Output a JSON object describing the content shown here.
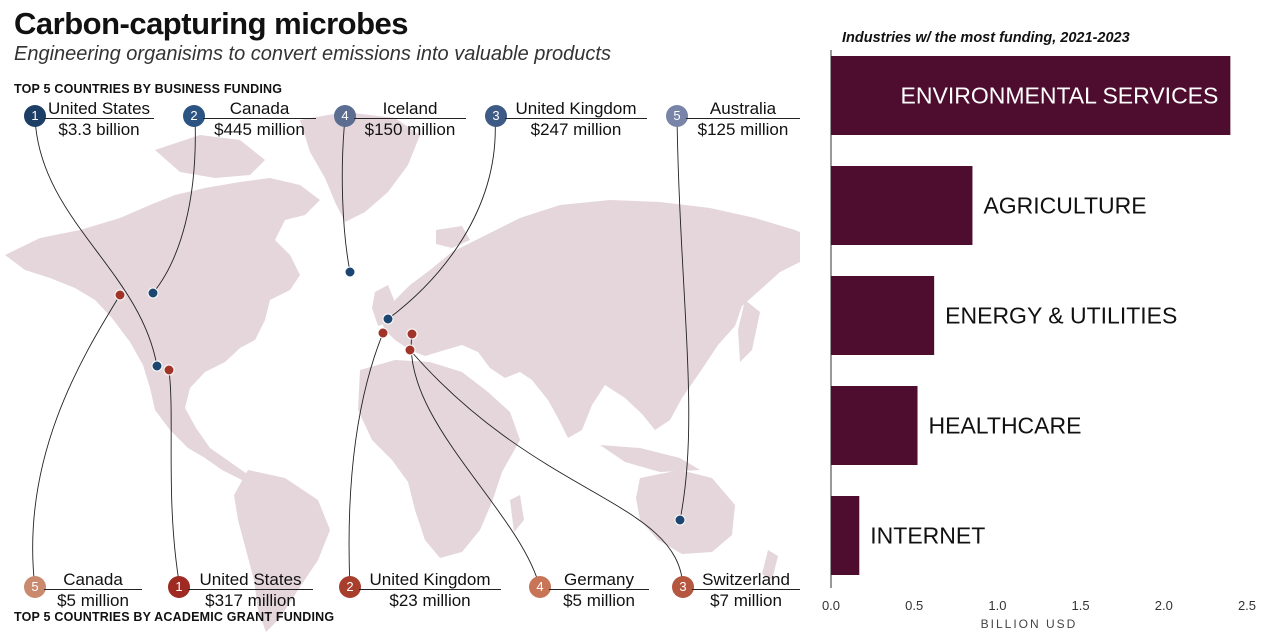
{
  "header": {
    "title": "Carbon-capturing microbes",
    "subtitle": "Engineering organisims to convert emissions into valuable products"
  },
  "map": {
    "business_label": "TOP 5 COUNTRIES BY BUSINESS FUNDING",
    "academic_label": "TOP 5 COUNTRIES BY ACADEMIC GRANT FUNDING",
    "business": [
      {
        "rank": "1",
        "country": "United States",
        "amount": "$3.3 billion",
        "color": "#1d3f66"
      },
      {
        "rank": "2",
        "country": "Canada",
        "amount": "$445 million",
        "color": "#2c5482"
      },
      {
        "rank": "4",
        "country": "Iceland",
        "amount": "$150 million",
        "color": "#5c6d92"
      },
      {
        "rank": "3",
        "country": "United Kingdom",
        "amount": "$247 million",
        "color": "#3e5b85"
      },
      {
        "rank": "5",
        "country": "Australia",
        "amount": "$125 million",
        "color": "#7884a8"
      }
    ],
    "academic": [
      {
        "rank": "5",
        "country": "Canada",
        "amount": "$5 million",
        "color": "#c98a6e"
      },
      {
        "rank": "1",
        "country": "United States",
        "amount": "$317 million",
        "color": "#9e2a22"
      },
      {
        "rank": "2",
        "country": "United Kingdom",
        "amount": "$23 million",
        "color": "#a83e2c"
      },
      {
        "rank": "4",
        "country": "Germany",
        "amount": "$5 million",
        "color": "#c77457"
      },
      {
        "rank": "3",
        "country": "Switzerland",
        "amount": "$7 million",
        "color": "#b5563f"
      }
    ],
    "land_color": "#e4d6da",
    "business_dot_color": "#1c4570",
    "academic_dot_color": "#a03428"
  },
  "chart_data": {
    "type": "bar",
    "orientation": "horizontal",
    "title": "Industries w/ the most funding, 2021-2023",
    "categories": [
      "ENVIRONMENTAL SERVICES",
      "AGRICULTURE",
      "ENERGY & UTILITIES",
      "HEALTHCARE",
      "INTERNET"
    ],
    "values": [
      2.4,
      0.85,
      0.62,
      0.52,
      0.17
    ],
    "xlabel": "BILLION USD",
    "xlim": [
      0,
      2.5
    ],
    "ticks": [
      "0.0",
      "0.5",
      "1.0",
      "1.5",
      "2.0",
      "2.5"
    ],
    "bar_color": "#4e0d2f",
    "label_color_inside": "#ffffff",
    "label_color_outside": "#111111"
  }
}
